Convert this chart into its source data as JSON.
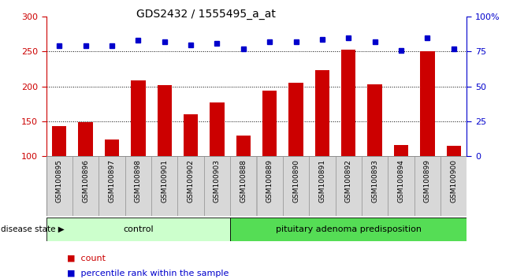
{
  "title": "GDS2432 / 1555495_a_at",
  "categories": [
    "GSM100895",
    "GSM100896",
    "GSM100897",
    "GSM100898",
    "GSM100901",
    "GSM100902",
    "GSM100903",
    "GSM100888",
    "GSM100889",
    "GSM100890",
    "GSM100891",
    "GSM100892",
    "GSM100893",
    "GSM100894",
    "GSM100899",
    "GSM100900"
  ],
  "bar_values": [
    143,
    149,
    124,
    209,
    202,
    160,
    177,
    130,
    194,
    205,
    223,
    253,
    203,
    116,
    250,
    115
  ],
  "percentile_values": [
    79,
    79,
    79,
    83,
    82,
    80,
    81,
    77,
    82,
    82,
    84,
    85,
    82,
    76,
    85,
    77
  ],
  "bar_color": "#cc0000",
  "dot_color": "#0000cc",
  "ylim_left": [
    100,
    300
  ],
  "ylim_right": [
    0,
    100
  ],
  "yticks_left": [
    100,
    150,
    200,
    250,
    300
  ],
  "yticks_right": [
    0,
    25,
    50,
    75,
    100
  ],
  "yticklabels_right": [
    "0",
    "25",
    "50",
    "75",
    "100%"
  ],
  "control_samples": 7,
  "control_label": "control",
  "disease_label": "pituitary adenoma predisposition",
  "disease_state_label": "disease state",
  "legend_count": "count",
  "legend_percentile": "percentile rank within the sample",
  "grid_values": [
    150,
    200,
    250
  ],
  "bar_color_light": "#ccffcc",
  "disease_color": "#55dd55",
  "bar_width": 0.55
}
